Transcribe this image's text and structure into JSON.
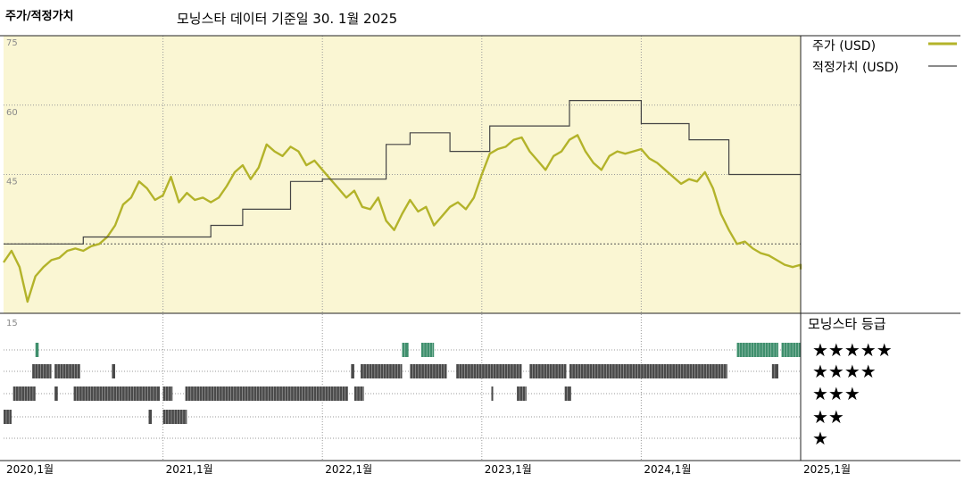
{
  "header": {
    "title": "주가/적정가치",
    "subtitle": "모닝스타 데이터 기준일 30. 1월 2025"
  },
  "colors": {
    "price": "#b3b32a",
    "fair_value": "#444444",
    "plot_bg": "#faf6d3",
    "five_star": "#3f8f6d",
    "rating_bar": "#4a4a4a"
  },
  "chart_data": {
    "type": "line",
    "x_tick_labels": [
      "2020,1월",
      "2021,1월",
      "2022,1월",
      "2023,1월",
      "2024,1월",
      "2025,1월"
    ],
    "ylim": [
      15,
      75
    ],
    "y_ticks": [
      15,
      30,
      45,
      60,
      75
    ],
    "y_tick_labels": [
      "15",
      "",
      "45",
      "60",
      "75"
    ],
    "series": [
      {
        "name": "주가 (USD)",
        "x": [
          2020.0,
          2020.05,
          2020.1,
          2020.15,
          2020.2,
          2020.25,
          2020.3,
          2020.35,
          2020.4,
          2020.45,
          2020.5,
          2020.55,
          2020.6,
          2020.65,
          2020.7,
          2020.75,
          2020.8,
          2020.85,
          2020.9,
          2020.95,
          2021.0,
          2021.05,
          2021.1,
          2021.15,
          2021.2,
          2021.25,
          2021.3,
          2021.35,
          2021.4,
          2021.45,
          2021.5,
          2021.55,
          2021.6,
          2021.65,
          2021.7,
          2021.75,
          2021.8,
          2021.85,
          2021.9,
          2021.95,
          2022.0,
          2022.05,
          2022.1,
          2022.15,
          2022.2,
          2022.25,
          2022.3,
          2022.35,
          2022.4,
          2022.45,
          2022.5,
          2022.55,
          2022.6,
          2022.65,
          2022.7,
          2022.75,
          2022.8,
          2022.85,
          2022.9,
          2022.95,
          2023.0,
          2023.05,
          2023.1,
          2023.15,
          2023.2,
          2023.25,
          2023.3,
          2023.35,
          2023.4,
          2023.45,
          2023.5,
          2023.55,
          2023.6,
          2023.65,
          2023.7,
          2023.75,
          2023.8,
          2023.85,
          2023.9,
          2023.95,
          2024.0,
          2024.05,
          2024.1,
          2024.15,
          2024.2,
          2024.25,
          2024.3,
          2024.35,
          2024.4,
          2024.45,
          2024.5,
          2024.55,
          2024.6,
          2024.65,
          2024.7,
          2024.75,
          2024.8,
          2024.85,
          2024.9,
          2024.95,
          2025.0,
          2025.08
        ],
        "y": [
          26.0,
          28.5,
          25.0,
          17.5,
          23.0,
          25.0,
          26.5,
          27.0,
          28.5,
          29.0,
          28.5,
          29.5,
          30.0,
          31.5,
          34.0,
          38.5,
          40.0,
          43.5,
          42.0,
          39.5,
          40.5,
          44.5,
          39.0,
          41.0,
          39.5,
          40.0,
          39.0,
          40.0,
          42.5,
          45.5,
          47.0,
          44.0,
          46.5,
          51.5,
          50.0,
          49.0,
          51.0,
          50.0,
          47.0,
          48.0,
          46.0,
          44.0,
          42.0,
          40.0,
          41.5,
          38.0,
          37.5,
          40.0,
          35.0,
          33.0,
          36.5,
          39.5,
          37.0,
          38.0,
          34.0,
          36.0,
          38.0,
          39.0,
          37.5,
          40.0,
          45.0,
          49.5,
          50.5,
          51.0,
          52.5,
          53.0,
          50.0,
          48.0,
          46.0,
          49.0,
          50.0,
          52.5,
          53.5,
          50.0,
          47.5,
          46.0,
          49.0,
          50.0,
          49.5,
          50.0,
          50.5,
          48.5,
          47.5,
          46.0,
          44.5,
          43.0,
          44.0,
          43.5,
          45.5,
          42.0,
          36.5,
          33.0,
          30.0,
          30.5,
          29.0,
          28.0,
          27.5,
          26.5,
          25.5,
          25.0,
          25.5,
          24.5
        ]
      },
      {
        "name": "적정가치 (USD)",
        "x": [
          2020.0,
          2020.5,
          2021.0,
          2021.3,
          2021.5,
          2021.8,
          2022.0,
          2022.3,
          2022.4,
          2022.55,
          2022.8,
          2023.05,
          2023.55,
          2024.0,
          2024.3,
          2024.55,
          2025.08
        ],
        "y": [
          30.0,
          31.5,
          31.5,
          34.0,
          37.5,
          43.5,
          44.0,
          44.0,
          51.5,
          54.0,
          50.0,
          55.5,
          61.0,
          56.0,
          52.5,
          45.0,
          45.0
        ]
      }
    ],
    "rating_title": "모닝스타 등급",
    "rating_levels": [
      {
        "stars": "★★★★★",
        "spans": [
          [
            2020.2,
            2020.22
          ],
          [
            2022.5,
            2022.54
          ],
          [
            2022.62,
            2022.7
          ],
          [
            2024.6,
            2024.86
          ],
          [
            2024.88,
            2025.08
          ]
        ]
      },
      {
        "stars": "★★★★",
        "spans": [
          [
            2020.18,
            2020.3
          ],
          [
            2020.32,
            2020.48
          ],
          [
            2020.68,
            2020.7
          ],
          [
            2022.18,
            2022.2
          ],
          [
            2022.24,
            2022.5
          ],
          [
            2022.55,
            2022.78
          ],
          [
            2022.84,
            2023.25
          ],
          [
            2023.3,
            2023.53
          ],
          [
            2023.55,
            2024.54
          ],
          [
            2024.82,
            2024.86
          ]
        ]
      },
      {
        "stars": "★★★",
        "spans": [
          [
            2020.06,
            2020.2
          ],
          [
            2020.32,
            2020.34
          ],
          [
            2020.44,
            2020.98
          ],
          [
            2021.0,
            2021.06
          ],
          [
            2021.14,
            2022.16
          ],
          [
            2022.2,
            2022.26
          ],
          [
            2023.06,
            2023.07
          ],
          [
            2023.22,
            2023.28
          ],
          [
            2023.52,
            2023.56
          ]
        ]
      },
      {
        "stars": "★★",
        "spans": [
          [
            2020.0,
            2020.05
          ],
          [
            2020.91,
            2020.93
          ],
          [
            2021.0,
            2021.15
          ]
        ]
      },
      {
        "stars": "★",
        "spans": []
      }
    ]
  }
}
